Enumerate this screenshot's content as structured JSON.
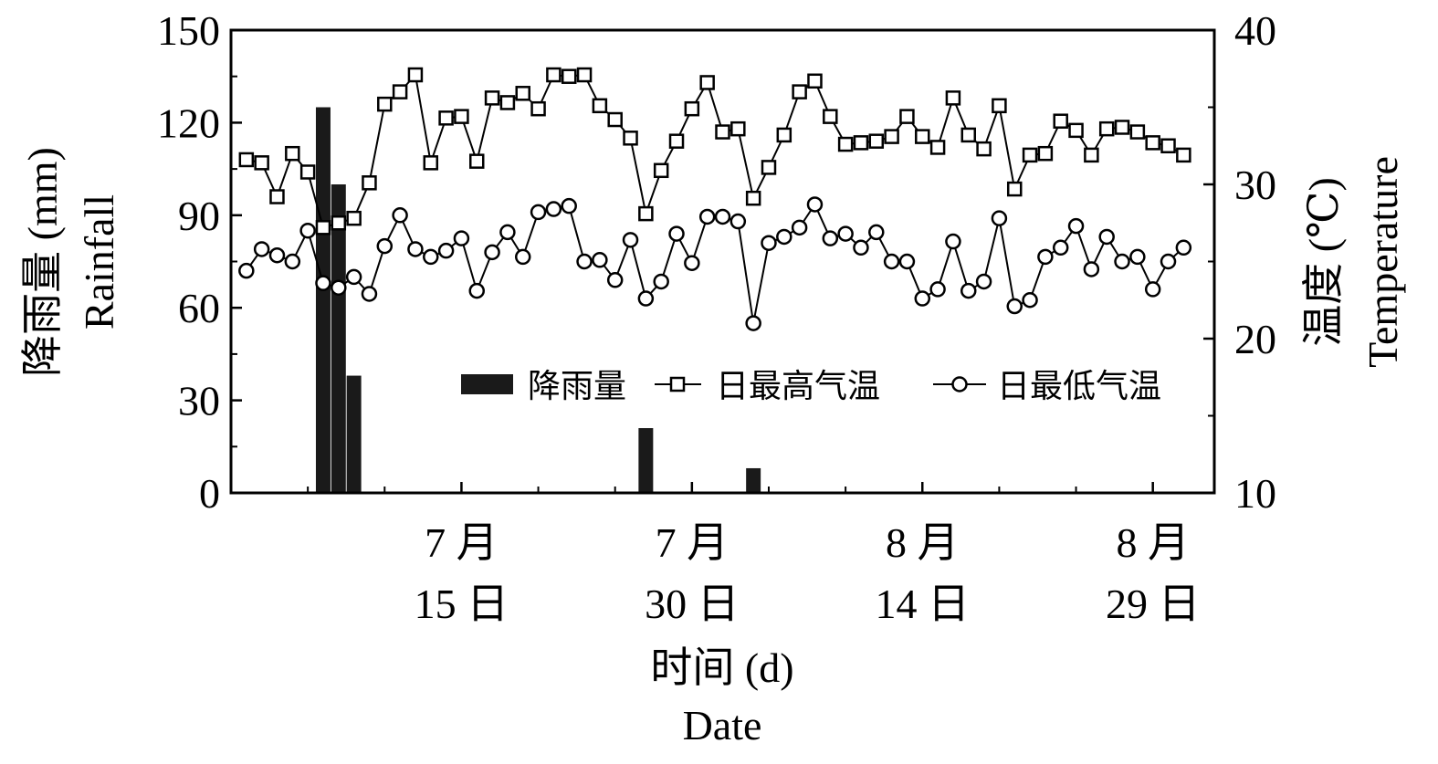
{
  "chart_data": {
    "type": "bar+line",
    "x_ticks": [
      {
        "day": 15,
        "month_label": "7 月",
        "day_label": "15 日"
      },
      {
        "day": 30,
        "month_label": "7 月",
        "day_label": "30 日"
      },
      {
        "day": 45,
        "month_label": "8 月",
        "day_label": "14 日"
      },
      {
        "day": 60,
        "month_label": "8 月",
        "day_label": "29 日"
      }
    ],
    "xlim": [
      0,
      64
    ],
    "xlabel_cn": "时间 (d)",
    "xlabel_en": "Date",
    "y_left": {
      "label_cn": "降雨量 (mm)",
      "label_en": "Rainfall",
      "lim": [
        0,
        150
      ],
      "ticks": [
        "0",
        "30",
        "60",
        "90",
        "120",
        "150"
      ]
    },
    "y_right": {
      "label_cn": "温度 (℃)",
      "label_en": "Temperature",
      "lim": [
        10,
        40
      ],
      "ticks": [
        "10",
        "20",
        "30",
        "40"
      ]
    },
    "legend": {
      "rain": "降雨量",
      "tmax": "日最高气温",
      "tmin": "日最低气温"
    },
    "rainfall": [
      {
        "x": 6,
        "value": 125
      },
      {
        "x": 7,
        "value": 100
      },
      {
        "x": 8,
        "value": 38
      },
      {
        "x": 27,
        "value": 21
      },
      {
        "x": 34,
        "value": 8
      }
    ],
    "series": [
      {
        "name": "日最高气温",
        "x": [
          1,
          2,
          3,
          4,
          5,
          6,
          7,
          8,
          9,
          10,
          11,
          12,
          13,
          14,
          15,
          16,
          17,
          18,
          19,
          20,
          21,
          22,
          23,
          24,
          25,
          26,
          27,
          28,
          29,
          30,
          31,
          32,
          33,
          34,
          35,
          36,
          37,
          38,
          39,
          40,
          41,
          42,
          43,
          44,
          45,
          46,
          47,
          48,
          49,
          50,
          51,
          52,
          53,
          54,
          55,
          56,
          57,
          58,
          59,
          60,
          61,
          62
        ],
        "values": [
          31.6,
          31.4,
          29.2,
          32.0,
          30.8,
          27.2,
          27.5,
          27.8,
          30.1,
          35.2,
          36.0,
          37.1,
          31.4,
          34.3,
          34.4,
          31.5,
          35.6,
          35.3,
          35.9,
          34.9,
          37.1,
          37.0,
          37.1,
          35.1,
          34.2,
          33.0,
          28.1,
          30.9,
          32.8,
          34.9,
          36.6,
          33.4,
          33.6,
          29.1,
          31.1,
          33.2,
          36.0,
          36.7,
          34.4,
          32.6,
          32.7,
          32.8,
          33.1,
          34.4,
          33.1,
          32.4,
          35.6,
          33.2,
          32.3,
          35.1,
          29.7,
          31.9,
          32.0,
          34.1,
          33.5,
          31.9,
          33.6,
          33.7,
          33.4,
          32.7,
          32.5,
          31.9
        ]
      },
      {
        "name": "日最低气温",
        "x": [
          1,
          2,
          3,
          4,
          5,
          6,
          7,
          8,
          9,
          10,
          11,
          12,
          13,
          14,
          15,
          16,
          17,
          18,
          19,
          20,
          21,
          22,
          23,
          24,
          25,
          26,
          27,
          28,
          29,
          30,
          31,
          32,
          33,
          34,
          35,
          36,
          37,
          38,
          39,
          40,
          41,
          42,
          43,
          44,
          45,
          46,
          47,
          48,
          49,
          50,
          51,
          52,
          53,
          54,
          55,
          56,
          57,
          58,
          59,
          60,
          61,
          62
        ],
        "values": [
          24.4,
          25.8,
          25.4,
          25.0,
          27.0,
          23.6,
          23.3,
          24.0,
          22.9,
          26.0,
          28.0,
          25.8,
          25.3,
          25.7,
          26.5,
          23.1,
          25.6,
          26.9,
          25.3,
          28.2,
          28.4,
          28.6,
          25.0,
          25.1,
          23.8,
          26.4,
          22.6,
          23.7,
          26.8,
          24.9,
          27.9,
          27.9,
          27.6,
          21.0,
          26.2,
          26.6,
          27.2,
          28.7,
          26.5,
          26.8,
          25.9,
          26.9,
          25.0,
          25.0,
          22.6,
          23.2,
          26.3,
          23.1,
          23.7,
          27.8,
          22.1,
          22.5,
          25.3,
          25.9,
          27.3,
          24.5,
          26.6,
          25.0,
          25.3,
          23.2,
          25.0,
          25.9
        ]
      }
    ]
  }
}
